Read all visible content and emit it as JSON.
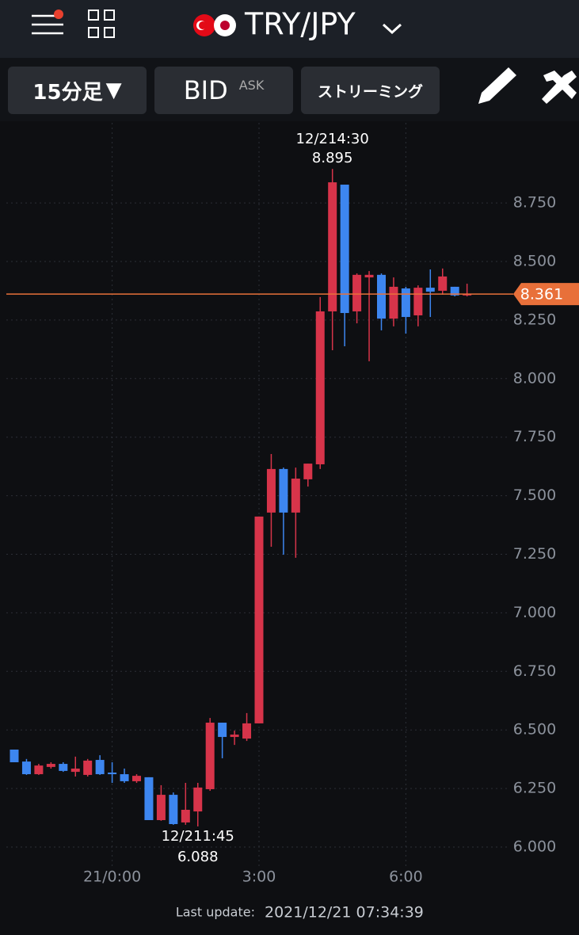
{
  "header": {
    "pair": "TRY/JPY"
  },
  "toolbar": {
    "timeframe": "15分足",
    "bid": "BID",
    "ask": "ASK",
    "streaming": "ストリーミング"
  },
  "chart_data": {
    "type": "candlestick",
    "categories": [
      null,
      null,
      null,
      null,
      null,
      null,
      null,
      null,
      "21/0:00",
      null,
      null,
      null,
      null,
      null,
      null,
      null,
      null,
      null,
      null,
      null,
      "3:00",
      null,
      null,
      null,
      null,
      null,
      null,
      null,
      null,
      null,
      null,
      null,
      "6:00",
      null,
      null,
      null,
      null,
      null
    ],
    "open": [
      6.416,
      6.365,
      6.311,
      6.342,
      6.355,
      6.321,
      6.308,
      6.372,
      6.318,
      6.311,
      6.281,
      6.298,
      6.115,
      6.223,
      6.105,
      6.152,
      6.247,
      6.531,
      6.47,
      6.463,
      6.528,
      7.428,
      7.614,
      7.428,
      7.57,
      7.634,
      8.287,
      8.828,
      8.287,
      8.432,
      8.443,
      8.256,
      8.385,
      8.27,
      8.388,
      8.375,
      8.392,
      8.355
    ],
    "high": [
      6.416,
      6.376,
      6.355,
      6.362,
      6.362,
      6.386,
      6.376,
      6.392,
      6.362,
      6.335,
      6.311,
      6.298,
      6.264,
      6.233,
      6.274,
      6.274,
      6.551,
      6.531,
      6.497,
      6.572,
      7.411,
      7.678,
      7.62,
      7.62,
      7.637,
      8.348,
      8.895,
      8.828,
      8.449,
      8.459,
      8.449,
      8.432,
      8.392,
      8.398,
      8.466,
      8.47,
      8.392,
      8.405
    ],
    "low": [
      6.362,
      6.308,
      6.308,
      6.335,
      6.321,
      6.301,
      6.301,
      6.308,
      6.274,
      6.274,
      6.274,
      6.115,
      6.112,
      6.095,
      6.095,
      6.088,
      6.24,
      6.379,
      6.436,
      6.453,
      6.528,
      7.282,
      7.248,
      7.235,
      7.539,
      7.614,
      8.121,
      8.138,
      8.236,
      8.074,
      8.206,
      8.223,
      8.192,
      8.223,
      8.263,
      8.358,
      8.351,
      8.351
    ],
    "close": [
      6.362,
      6.311,
      6.348,
      6.355,
      6.325,
      6.335,
      6.369,
      6.311,
      6.311,
      6.281,
      6.304,
      6.115,
      6.223,
      6.098,
      6.159,
      6.254,
      6.531,
      6.47,
      6.48,
      6.528,
      7.411,
      7.614,
      7.428,
      7.573,
      7.637,
      8.287,
      8.838,
      8.28,
      8.443,
      8.443,
      8.256,
      8.392,
      8.263,
      8.388,
      8.371,
      8.436,
      8.355,
      8.361
    ],
    "up_color": "#d7344a",
    "down_color": "#3d86f0",
    "ylim": [
      5.912,
      9.092
    ],
    "yticks": [
      {
        "value": 6,
        "label": "6.000"
      },
      {
        "value": 6.25,
        "label": "6.250"
      },
      {
        "value": 6.5,
        "label": "6.500"
      },
      {
        "value": 6.75,
        "label": "6.750"
      },
      {
        "value": 7,
        "label": "7.000"
      },
      {
        "value": 7.25,
        "label": "7.250"
      },
      {
        "value": 7.5,
        "label": "7.500"
      },
      {
        "value": 7.75,
        "label": "7.750"
      },
      {
        "value": 8,
        "label": "8.000"
      },
      {
        "value": 8.25,
        "label": "8.250"
      },
      {
        "value": 8.5,
        "label": "8.500"
      },
      {
        "value": 8.75,
        "label": "8.750"
      }
    ],
    "grid": true,
    "high_marker": {
      "index": 26,
      "time": "12/214:30",
      "price": 8.895
    },
    "low_marker": {
      "index": 15,
      "time": "12/211:45",
      "price": 6.088
    },
    "current_price": {
      "price": 8.361,
      "color": "#e8703a"
    }
  },
  "footer": {
    "label": "Last update:",
    "time": "2021/12/21 07:34:39"
  }
}
